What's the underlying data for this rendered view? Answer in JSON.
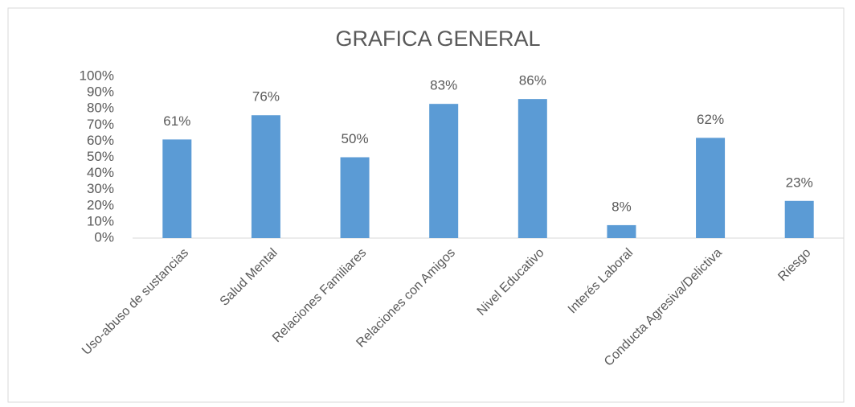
{
  "chart_data": {
    "type": "bar",
    "title": "GRAFICA GENERAL",
    "categories": [
      "Uso-abuso de sustancias",
      "Salud Mental",
      "Relaciones Familiares",
      "Relaciones con Amigos",
      "Nivel Educativo",
      "Interés Laboral",
      "Conducta Agresiva/Delictiva",
      "Riesgo"
    ],
    "values": [
      61,
      76,
      50,
      83,
      86,
      8,
      62,
      23
    ],
    "value_labels": [
      "61%",
      "76%",
      "50%",
      "83%",
      "86%",
      "8%",
      "62%",
      "23%"
    ],
    "color": "#5b9bd5",
    "ylim": [
      0,
      100
    ],
    "yticks": [
      {
        "value": 0,
        "label": "0%"
      },
      {
        "value": 10,
        "label": "10%"
      },
      {
        "value": 20,
        "label": "20%"
      },
      {
        "value": 30,
        "label": "30%"
      },
      {
        "value": 40,
        "label": "40%"
      },
      {
        "value": 50,
        "label": "50%"
      },
      {
        "value": 60,
        "label": "60%"
      },
      {
        "value": 70,
        "label": "70%"
      },
      {
        "value": 80,
        "label": "80%"
      },
      {
        "value": 90,
        "label": "90%"
      },
      {
        "value": 100,
        "label": "100%"
      }
    ],
    "grid": false
  }
}
